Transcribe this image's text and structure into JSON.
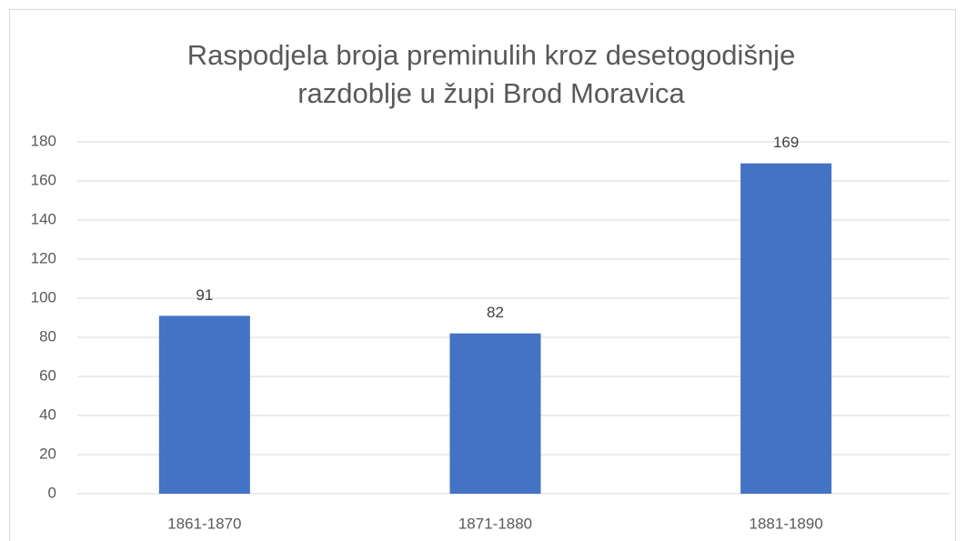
{
  "chart_data": {
    "type": "bar",
    "title": "Raspodjela broja preminulih kroz desetogodišnje razdoblje u župi Brod Moravica",
    "categories": [
      "1861-1870",
      "1871-1880",
      "1881-1890"
    ],
    "values": [
      91,
      82,
      169
    ],
    "color": "#4472c4",
    "ylim": [
      0,
      180
    ],
    "yticks": [
      0,
      20,
      40,
      60,
      80,
      100,
      120,
      140,
      160,
      180
    ],
    "grid": true,
    "data_labels": true
  }
}
